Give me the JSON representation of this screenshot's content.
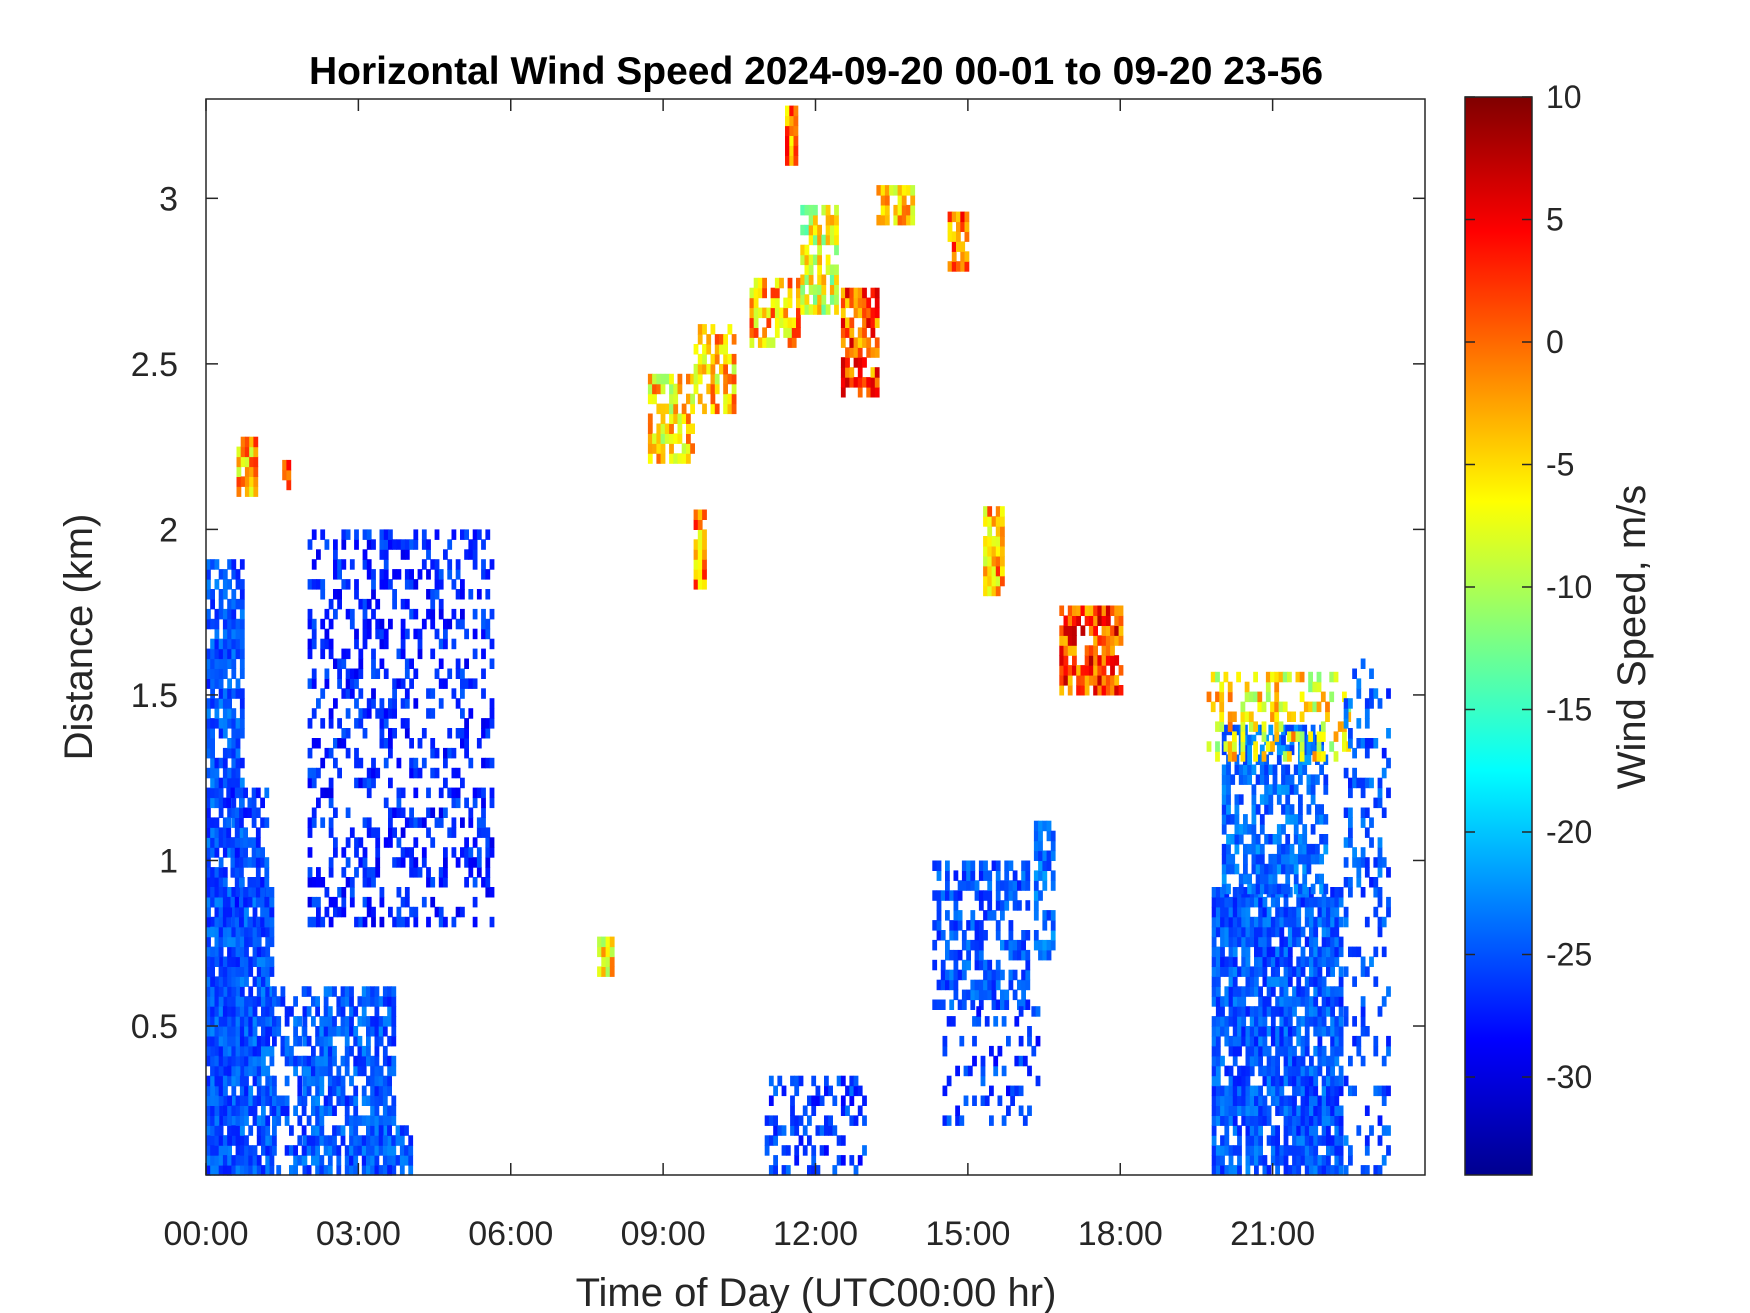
{
  "chart_data": {
    "type": "heatmap",
    "title": "Horizontal Wind Speed 2024-09-20 00-01 to 09-20 23-56",
    "xlabel": "Time of Day (UTC00:00 hr)",
    "ylabel": "Distance (km)",
    "x_range_hours": [
      0,
      24
    ],
    "y_range_km": [
      0.05,
      3.3
    ],
    "x_ticks": [
      {
        "value": 0,
        "label": "00:00"
      },
      {
        "value": 3,
        "label": "03:00"
      },
      {
        "value": 6,
        "label": "06:00"
      },
      {
        "value": 9,
        "label": "09:00"
      },
      {
        "value": 12,
        "label": "12:00"
      },
      {
        "value": 15,
        "label": "15:00"
      },
      {
        "value": 18,
        "label": "18:00"
      },
      {
        "value": 21,
        "label": "21:00"
      }
    ],
    "y_ticks": [
      {
        "value": 0.5,
        "label": "0.5"
      },
      {
        "value": 1,
        "label": "1"
      },
      {
        "value": 1.5,
        "label": "1.5"
      },
      {
        "value": 2,
        "label": "2"
      },
      {
        "value": 2.5,
        "label": "2.5"
      },
      {
        "value": 3,
        "label": "3"
      }
    ],
    "colorbar": {
      "label": "Wind Speed, m/s",
      "range": [
        -34,
        10
      ],
      "ticks": [
        {
          "value": 10,
          "label": "10"
        },
        {
          "value": 5,
          "label": "5"
        },
        {
          "value": 0,
          "label": "0"
        },
        {
          "value": -5,
          "label": "-5"
        },
        {
          "value": -10,
          "label": "-10"
        },
        {
          "value": -15,
          "label": "-15"
        },
        {
          "value": -20,
          "label": "-20"
        },
        {
          "value": -25,
          "label": "-25"
        },
        {
          "value": -30,
          "label": "-30"
        }
      ],
      "colormap": "jet"
    },
    "clusters": [
      {
        "t0": 0.0,
        "t1": 0.7,
        "d0": 0.05,
        "d1": 1.9,
        "v": -25,
        "density": 0.75
      },
      {
        "t0": 0.0,
        "t1": 1.3,
        "d0": 0.05,
        "d1": 0.9,
        "v": -25,
        "density": 0.85
      },
      {
        "t0": 0.4,
        "t1": 1.2,
        "d0": 0.8,
        "d1": 1.2,
        "v": -26,
        "density": 0.6
      },
      {
        "t0": 1.3,
        "t1": 1.9,
        "d0": 0.05,
        "d1": 0.6,
        "v": -25,
        "density": 0.45
      },
      {
        "t0": 1.9,
        "t1": 3.7,
        "d0": 0.05,
        "d1": 0.6,
        "v": -25,
        "density": 0.75
      },
      {
        "t0": 3.4,
        "t1": 4.0,
        "d0": 0.05,
        "d1": 0.2,
        "v": -25,
        "density": 0.5
      },
      {
        "t0": 2.0,
        "t1": 5.6,
        "d0": 0.8,
        "d1": 2.0,
        "v": -27,
        "density": 0.32
      },
      {
        "t0": 0.6,
        "t1": 1.0,
        "d0": 2.1,
        "d1": 2.25,
        "v": -3,
        "density": 0.9
      },
      {
        "t0": 1.5,
        "t1": 1.65,
        "d0": 2.12,
        "d1": 2.18,
        "v": 2,
        "density": 0.9
      },
      {
        "t0": 7.7,
        "t1": 8.0,
        "d0": 0.65,
        "d1": 0.77,
        "v": -6,
        "density": 0.9
      },
      {
        "t0": 9.6,
        "t1": 9.8,
        "d0": 1.82,
        "d1": 2.05,
        "v": -2,
        "density": 0.85
      },
      {
        "t0": 8.7,
        "t1": 9.6,
        "d0": 2.2,
        "d1": 2.45,
        "v": -5,
        "density": 0.75
      },
      {
        "t0": 9.6,
        "t1": 10.4,
        "d0": 2.35,
        "d1": 2.6,
        "v": -4,
        "density": 0.7
      },
      {
        "t0": 10.7,
        "t1": 11.7,
        "d0": 2.55,
        "d1": 2.75,
        "v": -3,
        "density": 0.7
      },
      {
        "t0": 11.7,
        "t1": 12.4,
        "d0": 2.65,
        "d1": 2.95,
        "v": -8,
        "density": 0.7
      },
      {
        "t0": 12.5,
        "t1": 13.2,
        "d0": 2.4,
        "d1": 2.7,
        "v": 1,
        "density": 0.7
      },
      {
        "t0": 13.2,
        "t1": 13.9,
        "d0": 2.92,
        "d1": 3.03,
        "v": -4,
        "density": 0.85
      },
      {
        "t0": 11.4,
        "t1": 11.6,
        "d0": 3.1,
        "d1": 3.25,
        "v": -1,
        "density": 0.9
      },
      {
        "t0": 14.6,
        "t1": 15.0,
        "d0": 2.78,
        "d1": 2.95,
        "v": 0,
        "density": 0.8
      },
      {
        "t0": 15.3,
        "t1": 15.7,
        "d0": 1.8,
        "d1": 2.05,
        "v": -3,
        "density": 0.85
      },
      {
        "t0": 16.8,
        "t1": 18.0,
        "d0": 1.5,
        "d1": 1.77,
        "v": 2,
        "density": 0.75
      },
      {
        "t0": 14.3,
        "t1": 16.2,
        "d0": 0.55,
        "d1": 0.98,
        "v": -25,
        "density": 0.55
      },
      {
        "t0": 16.3,
        "t1": 16.7,
        "d0": 0.7,
        "d1": 1.1,
        "v": -24,
        "density": 0.7
      },
      {
        "t0": 19.8,
        "t1": 22.3,
        "d0": 0.05,
        "d1": 0.9,
        "v": -25,
        "density": 0.82
      },
      {
        "t0": 20.0,
        "t1": 22.0,
        "d0": 0.9,
        "d1": 1.4,
        "v": -24,
        "density": 0.65
      },
      {
        "t0": 19.7,
        "t1": 22.6,
        "d0": 1.3,
        "d1": 1.55,
        "v": -6,
        "density": 0.35
      },
      {
        "t0": 22.4,
        "t1": 23.3,
        "d0": 0.05,
        "d1": 1.6,
        "v": -25,
        "density": 0.25
      },
      {
        "t0": 11.0,
        "t1": 13.0,
        "d0": 0.05,
        "d1": 0.35,
        "v": -26,
        "density": 0.35
      },
      {
        "t0": 14.5,
        "t1": 16.4,
        "d0": 0.2,
        "d1": 0.55,
        "v": -26,
        "density": 0.18
      }
    ]
  }
}
